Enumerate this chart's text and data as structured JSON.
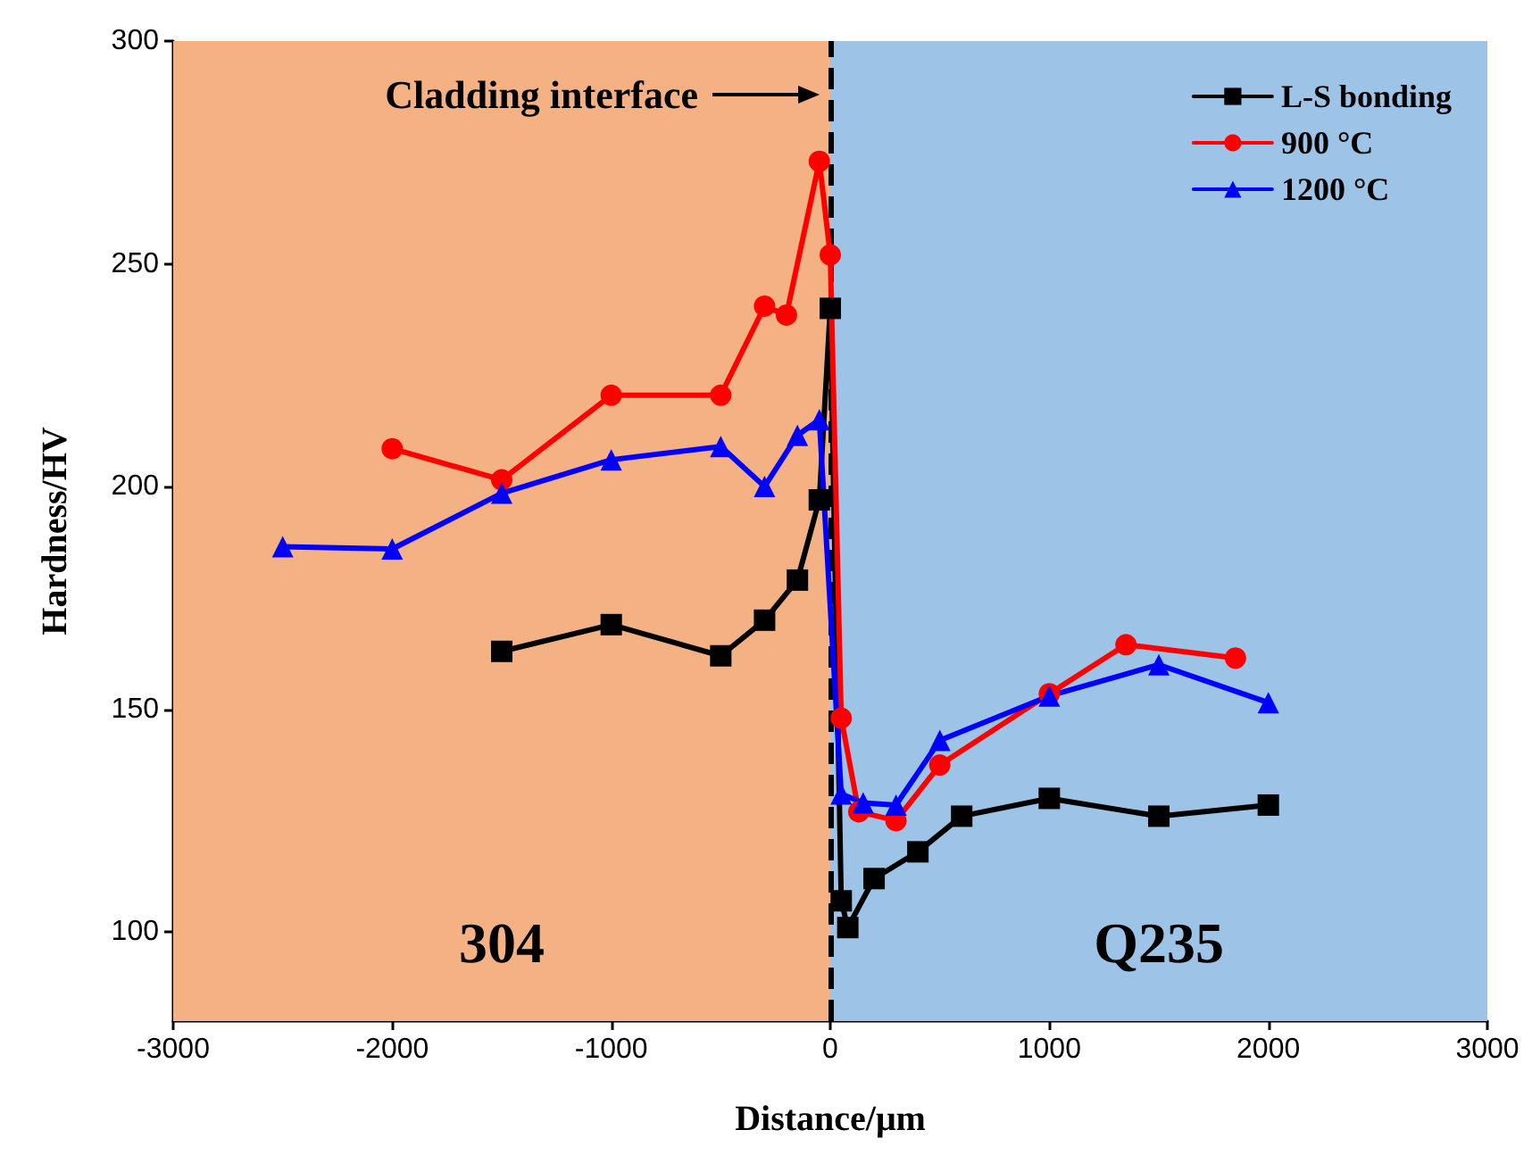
{
  "chart_data": {
    "type": "line",
    "xlabel": "Distance/μm",
    "ylabel": "Hardness/HV",
    "xlim": [
      -3000,
      3000
    ],
    "xticks": [
      -3000,
      -2000,
      -1000,
      0,
      1000,
      2000,
      3000
    ],
    "ylim": [
      80,
      300
    ],
    "yticks": [
      100,
      150,
      200,
      250,
      300
    ],
    "grid": false,
    "legend": "top right",
    "line_style": "solid",
    "series": [
      {
        "name": "L-S bonding",
        "color": "#000000",
        "marker": "square",
        "x": [
          -1500,
          -1000,
          -500,
          -300,
          -150,
          -50,
          0,
          50,
          80,
          200,
          400,
          600,
          1000,
          1500,
          2000
        ],
        "values": [
          163,
          169,
          162,
          170,
          179,
          197,
          240,
          107,
          101,
          112,
          118,
          126,
          130,
          126,
          128.5
        ]
      },
      {
        "name": "900 °C",
        "color": "#ff0000",
        "marker": "circle",
        "x": [
          -2000,
          -1500,
          -1000,
          -500,
          -300,
          -200,
          -50,
          0,
          50,
          130,
          300,
          500,
          1000,
          1350,
          1850
        ],
        "values": [
          208.5,
          201.5,
          220.5,
          220.5,
          240.5,
          238.5,
          273,
          252,
          148,
          127,
          125,
          137.5,
          153.5,
          164.5,
          161.5
        ]
      },
      {
        "name": "1200 °C",
        "color": "#0000ff",
        "marker": "triangle",
        "x": [
          -2500,
          -2000,
          -1500,
          -1000,
          -500,
          -300,
          -150,
          -50,
          50,
          150,
          300,
          500,
          1000,
          1500,
          2000
        ],
        "values": [
          186.5,
          186,
          198.5,
          206,
          209,
          200,
          211.5,
          215,
          131,
          129,
          128.5,
          143,
          153,
          160,
          151.5
        ]
      }
    ],
    "bands": [
      {
        "axis": "x",
        "from": -3000,
        "to": 0,
        "label": "304",
        "color": "#f4b183"
      },
      {
        "axis": "x",
        "from": 0,
        "to": 3000,
        "label": "Q235",
        "color": "#9dc3e6"
      }
    ],
    "ref_lines": [
      {
        "axis": "x",
        "value": 0,
        "color": "#000000",
        "line_style": "dashed"
      }
    ],
    "annotations": [
      "Cladding interface"
    ]
  }
}
